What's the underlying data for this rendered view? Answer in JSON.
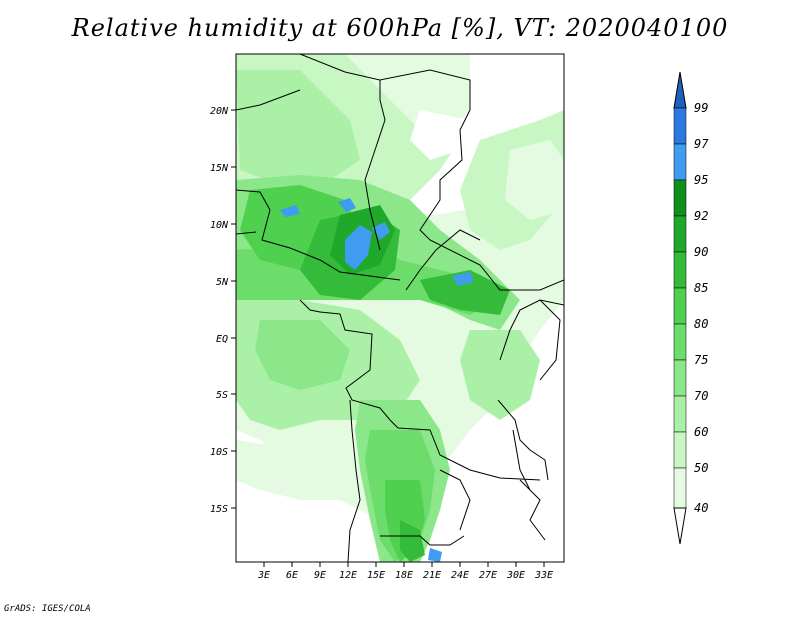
{
  "title": "Relative humidity at 600hPa [%], VT: 2020040100",
  "credit": "GrADS: IGES/COLA",
  "lat_labels": [
    "20N",
    "15N",
    "10N",
    "5N",
    "EQ",
    "5S",
    "10S",
    "15S"
  ],
  "lon_labels": [
    "3E",
    "6E",
    "9E",
    "12E",
    "15E",
    "18E",
    "21E",
    "24E",
    "27E",
    "30E",
    "33E"
  ],
  "colorbar": {
    "labels": [
      "99",
      "97",
      "95",
      "92",
      "90",
      "85",
      "80",
      "75",
      "70",
      "60",
      "50",
      "40"
    ],
    "colors": {
      "above_99": "#1f5fbf",
      "97_99": "#2b78e0",
      "95_97": "#3f9cf0",
      "92_95": "#0f8f1c",
      "90_92": "#1fa82a",
      "85_90": "#34bb3a",
      "80_85": "#4fd04f",
      "75_80": "#6cdc6a",
      "70_75": "#8ce68a",
      "60_70": "#aaf0a6",
      "50_60": "#c8f7c4",
      "40_50": "#e4fbe1",
      "below_40": "#ffffff"
    }
  }
}
